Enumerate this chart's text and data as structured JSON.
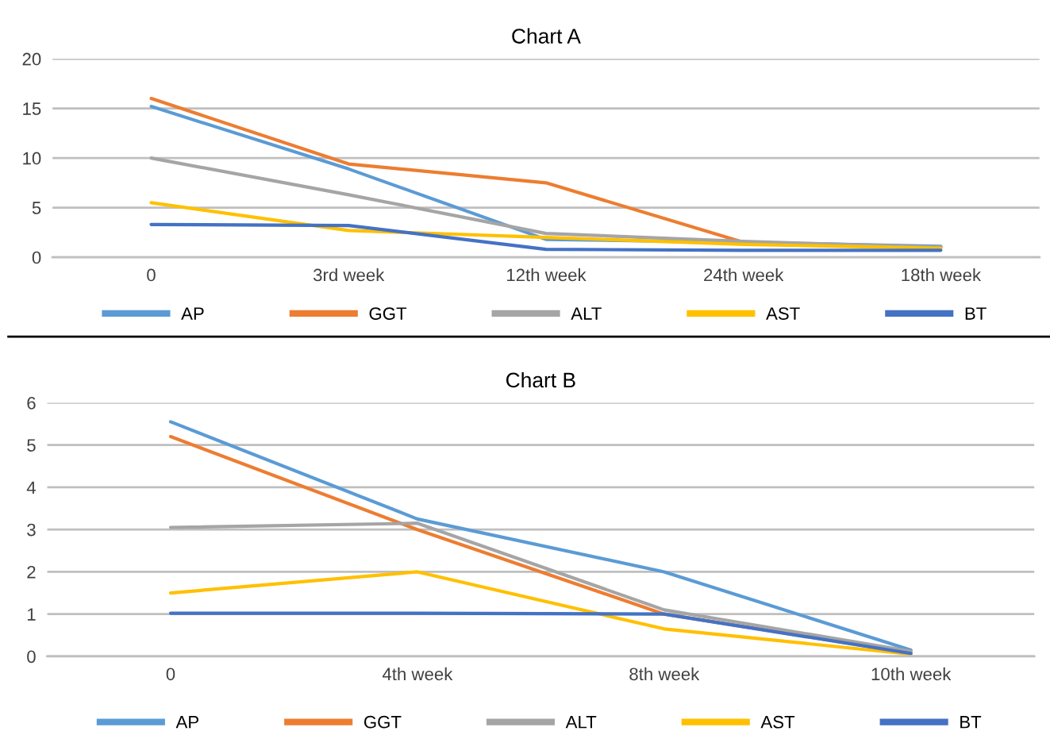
{
  "chart_data": [
    {
      "type": "line",
      "title": "Chart A",
      "categories": [
        "0",
        "3rd week",
        "12th week",
        "24th week",
        "18th week"
      ],
      "series": [
        {
          "name": "AP",
          "color": "#5b9bd5",
          "values": [
            15.2,
            8.9,
            1.8,
            1.5,
            1.1
          ]
        },
        {
          "name": "GGT",
          "color": "#ed7d31",
          "values": [
            16,
            9.4,
            7.5,
            1.5,
            1.0
          ]
        },
        {
          "name": "ALT",
          "color": "#a5a5a5",
          "values": [
            10,
            6.3,
            2.4,
            1.6,
            1.0
          ]
        },
        {
          "name": "AST",
          "color": "#ffc000",
          "values": [
            5.5,
            2.7,
            2.0,
            1.3,
            0.9
          ]
        },
        {
          "name": "BT",
          "color": "#4472c4",
          "values": [
            3.3,
            3.2,
            0.8,
            0.7,
            0.7
          ]
        }
      ],
      "ylim": [
        0,
        20
      ],
      "yticks": [
        0,
        5,
        10,
        15,
        20
      ],
      "grid": "y",
      "legend": "bottom",
      "marker": "none",
      "line_style": "solid"
    },
    {
      "type": "line",
      "title": "Chart B",
      "categories": [
        "0",
        "4th week",
        "8th week",
        "10th week"
      ],
      "series": [
        {
          "name": "AP",
          "color": "#5b9bd5",
          "values": [
            5.55,
            3.25,
            2.0,
            0.15
          ]
        },
        {
          "name": "GGT",
          "color": "#ed7d31",
          "values": [
            5.2,
            3.0,
            1.0,
            0.08
          ]
        },
        {
          "name": "ALT",
          "color": "#a5a5a5",
          "values": [
            3.05,
            3.15,
            1.1,
            0.12
          ]
        },
        {
          "name": "AST",
          "color": "#ffc000",
          "values": [
            1.5,
            2.0,
            0.65,
            0.05
          ]
        },
        {
          "name": "BT",
          "color": "#4472c4",
          "values": [
            1.02,
            1.02,
            1.0,
            0.07
          ]
        }
      ],
      "ylim": [
        0,
        6
      ],
      "yticks": [
        0,
        1,
        2,
        3,
        4,
        5,
        6
      ],
      "grid": "y",
      "legend": "bottom",
      "marker": "none",
      "line_style": "solid"
    }
  ]
}
